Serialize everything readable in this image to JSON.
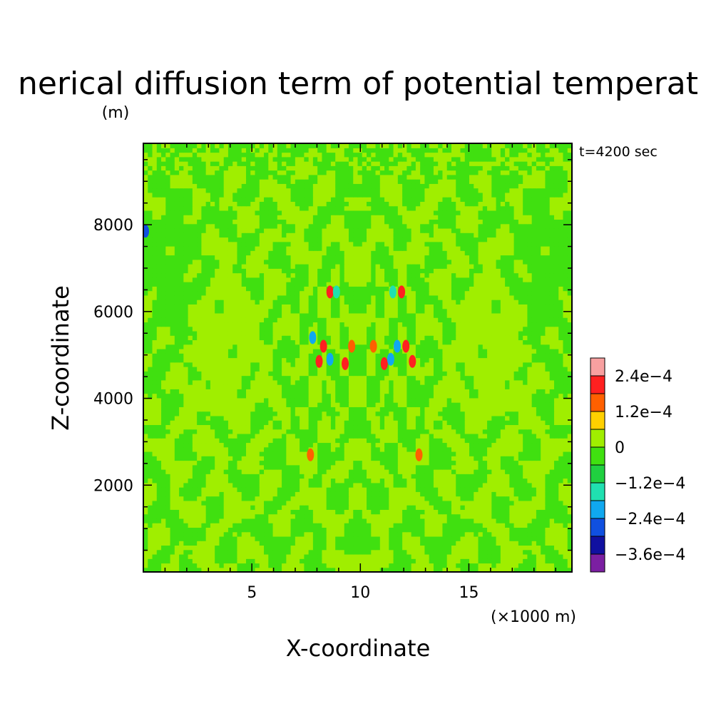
{
  "chart_data": {
    "type": "heatmap",
    "title": "nerical diffusion term of potential temperat",
    "time_label": "t=4200 sec",
    "xlabel": "X-coordinate",
    "ylabel": "Z-coordinate",
    "x_unit": "(×1000 m)",
    "y_unit": "(m)",
    "xlim": [
      0,
      19.75
    ],
    "ylim": [
      0,
      9875
    ],
    "x_ticks": [
      {
        "value": 5,
        "label": "5"
      },
      {
        "value": 10,
        "label": "10"
      },
      {
        "value": 15,
        "label": "15"
      }
    ],
    "y_ticks": [
      {
        "value": 2000,
        "label": "2000"
      },
      {
        "value": 4000,
        "label": "4000"
      },
      {
        "value": 6000,
        "label": "6000"
      },
      {
        "value": 8000,
        "label": "8000"
      }
    ],
    "colorbar": {
      "levels": [
        -0.00042,
        -0.00036,
        -0.0003,
        -0.00024,
        -0.00018,
        -0.00012,
        -6e-05,
        0,
        6e-05,
        0.00012,
        0.00018,
        0.00024,
        0.0003
      ],
      "colors": [
        "#7b1fa2",
        "#1010a0",
        "#1050e0",
        "#10a8f0",
        "#20e0b0",
        "#20d040",
        "#40e010",
        "#a0ee00",
        "#ffd000",
        "#ff6000",
        "#ff2020",
        "#f8a0a0"
      ],
      "labels": [
        {
          "value": 0.00024,
          "label": "2.4e−4"
        },
        {
          "value": 0.00012,
          "label": "1.2e−4"
        },
        {
          "value": 0,
          "label": "0"
        },
        {
          "value": -0.00012,
          "label": "−1.2e−4"
        },
        {
          "value": -0.00024,
          "label": "−2.4e−4"
        },
        {
          "value": -0.00036,
          "label": "−3.6e−4"
        }
      ]
    },
    "hotspots": [
      {
        "x": 8.6,
        "z": 6450,
        "v": 0.00022
      },
      {
        "x": 11.9,
        "z": 6450,
        "v": 0.00022
      },
      {
        "x": 8.9,
        "z": 6450,
        "v": -0.00015
      },
      {
        "x": 11.5,
        "z": 6450,
        "v": -0.00015
      },
      {
        "x": 8.3,
        "z": 5200,
        "v": 0.00022
      },
      {
        "x": 12.1,
        "z": 5200,
        "v": 0.00022
      },
      {
        "x": 8.1,
        "z": 4850,
        "v": 0.00022
      },
      {
        "x": 12.4,
        "z": 4850,
        "v": 0.00022
      },
      {
        "x": 9.3,
        "z": 4800,
        "v": 0.00018
      },
      {
        "x": 11.1,
        "z": 4800,
        "v": 0.00018
      },
      {
        "x": 7.8,
        "z": 5400,
        "v": -0.00022
      },
      {
        "x": 11.7,
        "z": 5200,
        "v": -0.00022
      },
      {
        "x": 8.6,
        "z": 4900,
        "v": -0.0002
      },
      {
        "x": 11.4,
        "z": 4900,
        "v": -0.0002
      },
      {
        "x": 9.6,
        "z": 5200,
        "v": 0.00014
      },
      {
        "x": 10.6,
        "z": 5200,
        "v": 0.00014
      },
      {
        "x": 0.1,
        "z": 7850,
        "v": -0.00025
      },
      {
        "x": 7.7,
        "z": 2700,
        "v": 0.00012
      },
      {
        "x": 12.7,
        "z": 2700,
        "v": 0.00012
      }
    ]
  }
}
